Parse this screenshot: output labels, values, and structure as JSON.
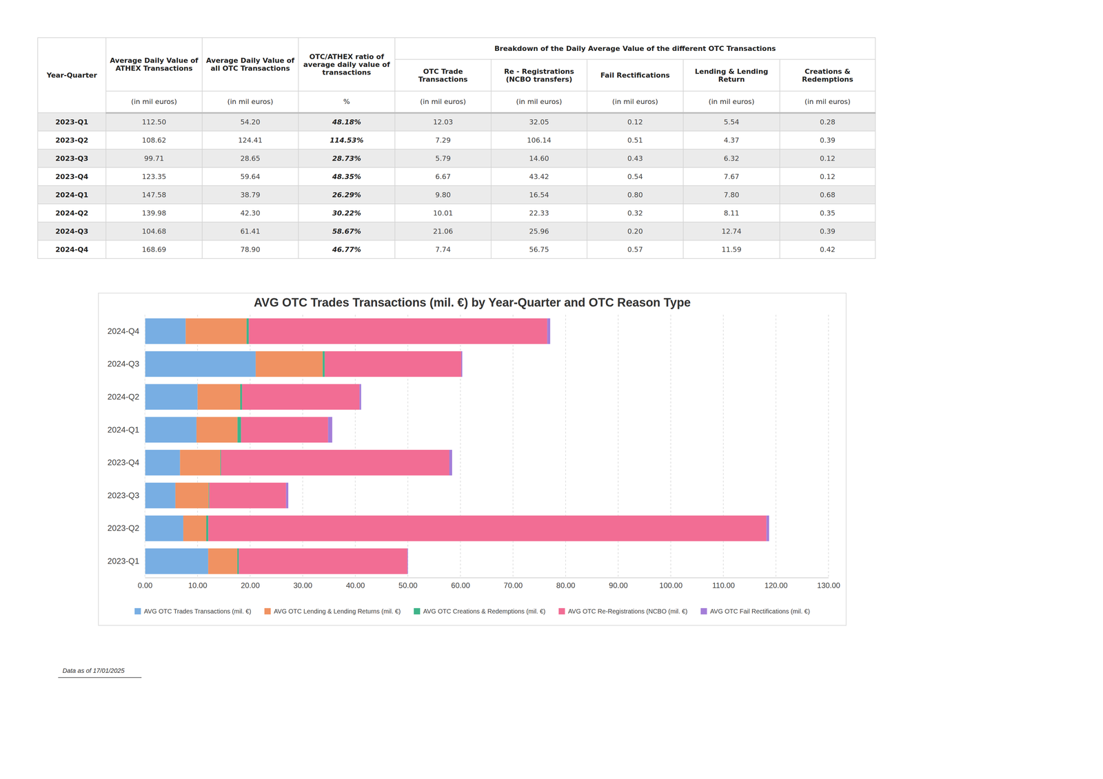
{
  "table": {
    "group_header": "Breakdown of the Daily Average Value of the different OTC Transactions",
    "columns": [
      {
        "label": "Year-Quarter"
      },
      {
        "label": "Average Daily Value of ATHEX Transactions",
        "unit": "(in mil euros)"
      },
      {
        "label": "Average Daily Value of all OTC Transactions",
        "unit": "(in mil euros)"
      },
      {
        "label": "OTC/ATHEX ratio of average daily value of transactions",
        "unit": "%"
      },
      {
        "label": "OTC Trade Transactions",
        "unit": "(in mil euros)"
      },
      {
        "label": "Re - Registrations (NCBO transfers)",
        "unit": "(in mil euros)"
      },
      {
        "label": "Fail Rectifications",
        "unit": "(in mil euros)"
      },
      {
        "label": "Lending & Lending Return",
        "unit": "(in mil euros)"
      },
      {
        "label": "Creations & Redemptions",
        "unit": "(in mil euros)"
      }
    ],
    "rows": [
      [
        "2023-Q1",
        "112.50",
        "54.20",
        "48.18%",
        "12.03",
        "32.05",
        "0.12",
        "5.54",
        "0.28"
      ],
      [
        "2023-Q2",
        "108.62",
        "124.41",
        "114.53%",
        "7.29",
        "106.14",
        "0.51",
        "4.37",
        "0.39"
      ],
      [
        "2023-Q3",
        "99.71",
        "28.65",
        "28.73%",
        "5.79",
        "14.60",
        "0.43",
        "6.32",
        "0.12"
      ],
      [
        "2023-Q4",
        "123.35",
        "59.64",
        "48.35%",
        "6.67",
        "43.42",
        "0.54",
        "7.67",
        "0.12"
      ],
      [
        "2024-Q1",
        "147.58",
        "38.79",
        "26.29%",
        "9.80",
        "16.54",
        "0.80",
        "7.80",
        "0.68"
      ],
      [
        "2024-Q2",
        "139.98",
        "42.30",
        "30.22%",
        "10.01",
        "22.33",
        "0.32",
        "8.11",
        "0.35"
      ],
      [
        "2024-Q3",
        "104.68",
        "61.41",
        "58.67%",
        "21.06",
        "25.96",
        "0.20",
        "12.74",
        "0.39"
      ],
      [
        "2024-Q4",
        "168.69",
        "78.90",
        "46.77%",
        "7.74",
        "56.75",
        "0.57",
        "11.59",
        "0.42"
      ]
    ]
  },
  "chart_data": {
    "type": "bar",
    "orientation": "horizontal",
    "stacked": true,
    "title": "AVG OTC Trades Transactions (mil. €) by Year-Quarter and OTC Reason Type",
    "categories": [
      "2023-Q1",
      "2023-Q2",
      "2023-Q3",
      "2023-Q4",
      "2024-Q1",
      "2024-Q2",
      "2024-Q3",
      "2024-Q4"
    ],
    "series": [
      {
        "name": "AVG OTC Trades Transactions (mil. €)",
        "color": "#78aee3",
        "values": [
          12.03,
          7.29,
          5.79,
          6.67,
          9.8,
          10.01,
          21.06,
          7.74
        ]
      },
      {
        "name": "AVG OTC Lending & Lending Returns (mil. €)",
        "color": "#f09262",
        "values": [
          5.54,
          4.37,
          6.32,
          7.67,
          7.8,
          8.11,
          12.74,
          11.59
        ]
      },
      {
        "name": "AVG OTC Creations & Redemptions (mil. €)",
        "color": "#3fb489",
        "values": [
          0.28,
          0.39,
          0.12,
          0.12,
          0.68,
          0.35,
          0.39,
          0.42
        ]
      },
      {
        "name": "AVG OTC Re-Registrations (NCBO (mil. €)",
        "color": "#f26d94",
        "values": [
          32.05,
          106.14,
          14.6,
          43.42,
          16.54,
          22.33,
          25.96,
          56.75
        ]
      },
      {
        "name": "AVG OTC Fail Rectifications (mil. €)",
        "color": "#a47ed8",
        "values": [
          0.12,
          0.51,
          0.43,
          0.54,
          0.8,
          0.32,
          0.2,
          0.57
        ]
      }
    ],
    "xlim": [
      0,
      130
    ],
    "xticks": [
      {
        "value": 0,
        "label": "0.00"
      },
      {
        "value": 10,
        "label": "10.00"
      },
      {
        "value": 20,
        "label": "20.00"
      },
      {
        "value": 30,
        "label": "30.00"
      },
      {
        "value": 40,
        "label": "40.00"
      },
      {
        "value": 50,
        "label": "50.00"
      },
      {
        "value": 60,
        "label": "60.00"
      },
      {
        "value": 70,
        "label": "70.00"
      },
      {
        "value": 80,
        "label": "80.00"
      },
      {
        "value": 90,
        "label": "90.00"
      },
      {
        "value": 100,
        "label": "100.00"
      },
      {
        "value": 110,
        "label": "110.00"
      },
      {
        "value": 120,
        "label": "120.00"
      },
      {
        "value": 130,
        "label": "130.00"
      }
    ],
    "grid": true,
    "legend": "bottom"
  },
  "footnote": "Data as of 17/01/2025"
}
